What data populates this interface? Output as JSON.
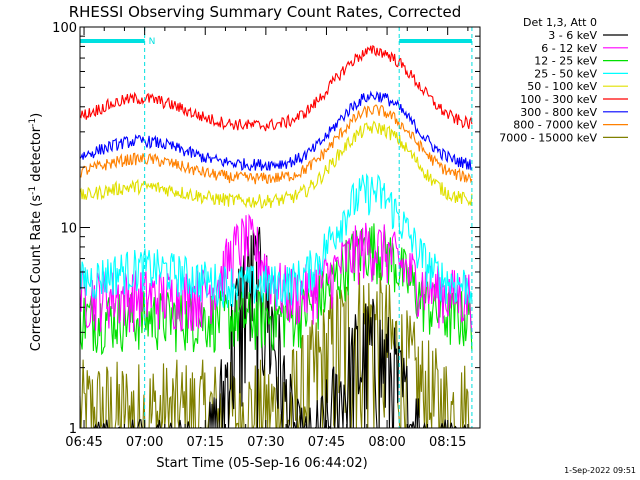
{
  "chart_data": {
    "type": "line",
    "title": "RHESSI Observing Summary Count Rates, Corrected",
    "xlabel": "Start Time (05-Sep-16 06:44:02)",
    "ylabel_main": "Corrected Count Rate (s",
    "ylabel_sup1": "-1",
    "ylabel_mid": " detector",
    "ylabel_sup2": "-1",
    "ylabel_end": ")",
    "y_scale": "log",
    "ylim": [
      1,
      100
    ],
    "xlim": [
      0,
      99
    ],
    "x_unit": "minutes after 06:44:02",
    "x_ticks": [
      {
        "t": 1,
        "label": "06:45"
      },
      {
        "t": 16,
        "label": "07:00"
      },
      {
        "t": 31,
        "label": "07:15"
      },
      {
        "t": 46,
        "label": "07:30"
      },
      {
        "t": 61,
        "label": "07:45"
      },
      {
        "t": 76,
        "label": "08:00"
      },
      {
        "t": 91,
        "label": "08:15"
      }
    ],
    "y_ticks": [
      {
        "v": 1,
        "label": "1"
      },
      {
        "v": 10,
        "label": "10"
      },
      {
        "v": 100,
        "label": "100"
      }
    ],
    "legend_title": "Det 1,3, Att 0",
    "series": [
      {
        "name": "3 - 6 keV",
        "color": "#000000"
      },
      {
        "name": "6 - 12 keV",
        "color": "#ff00ff"
      },
      {
        "name": "12 - 25 keV",
        "color": "#00e000"
      },
      {
        "name": "25 - 50 keV",
        "color": "#00ffff"
      },
      {
        "name": "50 - 100 keV",
        "color": "#e0e000"
      },
      {
        "name": "100 - 300 keV",
        "color": "#ff0000"
      },
      {
        "name": "300 - 800 keV",
        "color": "#0000ff"
      },
      {
        "name": "800 - 7000 keV",
        "color": "#ff8000"
      },
      {
        "name": "7000 - 15000 keV",
        "color": "#808000"
      }
    ],
    "flag_label": "N",
    "flag_color": "#00e0e0",
    "flags": [
      [
        0,
        16
      ],
      [
        79,
        97
      ]
    ],
    "vlines": [
      16,
      79,
      97
    ],
    "timestamp": "1-Sep-2022 09:51"
  }
}
